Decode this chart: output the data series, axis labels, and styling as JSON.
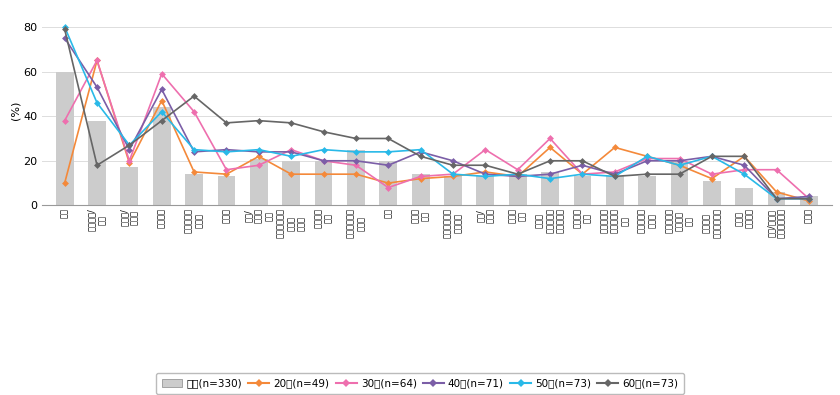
{
  "categories": [
    "白髪",
    "ぱさつき/\n乾燥",
    "くせ毛/\nうねり",
    "髪の傷み",
    "ボリューム\nがない",
    "抜け毛",
    "ハリ/\nコシが\nない",
    "ヘアカラーが\n長持ち\nしない",
    "髪の毛が\n細い",
    "髪にまとまり\nがない",
    "薄毛",
    "ツヤが\nない",
    "セットが長持\nちしない",
    "枝毛/\n切れ毛",
    "頭皮が\n痒い",
    "頭皮が\nポリューム\nありすぎる",
    "髪の毛が\n太い",
    "頭皮や髪の\n臭いが発生\nする",
    "頭皮が荒れ\nている",
    "頭皮の毛に\n静電気が\nたつ",
    "パーマが\nかかりにくい",
    "逆毛が\n立たない",
    "産前/産後の\n薄毛、肌荒れ",
    "その他"
  ],
  "全体": [
    60,
    38,
    17,
    44,
    14,
    13,
    21,
    20,
    20,
    25,
    20,
    14,
    13,
    13,
    14,
    15,
    13,
    13,
    13,
    20,
    11,
    8,
    6,
    4
  ],
  "20代": [
    10,
    65,
    19,
    47,
    15,
    14,
    22,
    14,
    14,
    14,
    10,
    12,
    13,
    15,
    13,
    26,
    14,
    26,
    22,
    18,
    12,
    22,
    6,
    2
  ],
  "30代": [
    38,
    65,
    20,
    59,
    42,
    16,
    18,
    25,
    20,
    18,
    8,
    13,
    14,
    25,
    16,
    30,
    14,
    15,
    21,
    21,
    14,
    16,
    16,
    3
  ],
  "40代": [
    75,
    53,
    25,
    52,
    24,
    25,
    24,
    24,
    20,
    20,
    18,
    24,
    20,
    14,
    13,
    14,
    18,
    14,
    20,
    20,
    22,
    18,
    3,
    4
  ],
  "50代": [
    80,
    46,
    27,
    42,
    25,
    24,
    25,
    22,
    25,
    24,
    24,
    25,
    14,
    13,
    14,
    12,
    14,
    13,
    22,
    18,
    22,
    14,
    3,
    3
  ],
  "60代": [
    79,
    18,
    27,
    38,
    49,
    37,
    38,
    37,
    33,
    30,
    30,
    22,
    18,
    18,
    14,
    20,
    20,
    13,
    14,
    14,
    22,
    22,
    3,
    3
  ],
  "colors": {
    "20代": "#F4893A",
    "30代": "#EE6FAE",
    "40代": "#7B5EA7",
    "50代": "#29B9E8",
    "60代": "#666666"
  },
  "bar_color": "#CCCCCC",
  "ylabel": "(%)",
  "ylim": [
    0,
    85
  ],
  "yticks": [
    0,
    20,
    40,
    60,
    80
  ],
  "legend_labels": [
    "全体(n=330)",
    "20代(n=49)",
    "30代(n=64)",
    "40代(n=71)",
    "50代(n=73)",
    "60代(n=73)"
  ]
}
